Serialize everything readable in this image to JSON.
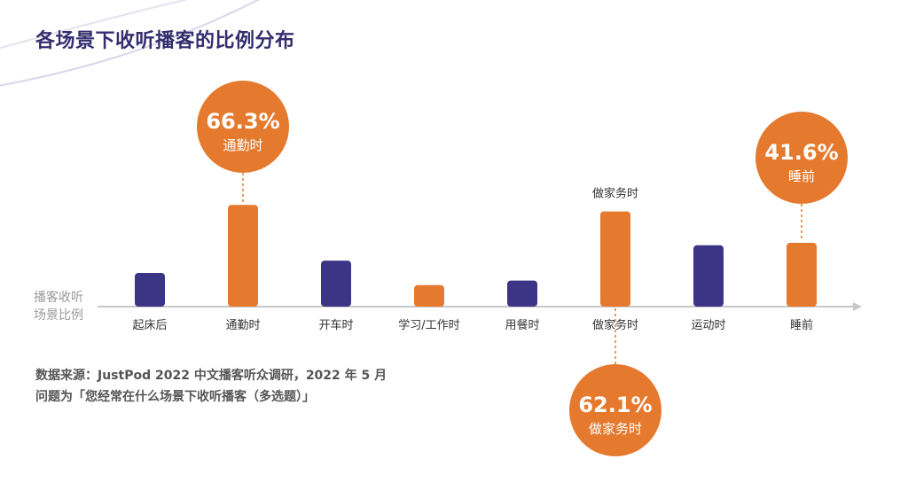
{
  "title": "各场景下收听播客的比例分布",
  "axis_caption": [
    "播客收听",
    "场景比例"
  ],
  "source": {
    "line1": "数据来源：JustPod 2022 中文播客听众调研，2022 年 5 月",
    "line2": "问题为「您经常在什么场景下收听播客（多选题）」"
  },
  "colors": {
    "navy": "#3c3586",
    "orange": "#e57a2f",
    "callout_text": "#ffffff",
    "axis": "#c8c8c8",
    "title": "#352d6e"
  },
  "chart_data": {
    "type": "bar",
    "categories": [
      "起床后",
      "通勤时",
      "开车时",
      "学习/工作时",
      "用餐时",
      "做家务时",
      "运动时",
      "睡前"
    ],
    "values": [
      22,
      66.3,
      30,
      14,
      17,
      62.1,
      40,
      41.6
    ],
    "value_labels": [
      "",
      "66.3%",
      "",
      "",
      "",
      "62.1%",
      "",
      "41.6%"
    ],
    "colors": [
      "navy",
      "orange",
      "navy",
      "orange",
      "navy",
      "orange",
      "navy",
      "orange"
    ],
    "top_labels": [
      "",
      "",
      "",
      "",
      "",
      "做家务时",
      "",
      ""
    ],
    "callouts": [
      {
        "index": 1,
        "value": "66.3%",
        "label": "通勤时",
        "side": "above"
      },
      {
        "index": 5,
        "value": "62.1%",
        "label": "做家务时",
        "side": "below"
      },
      {
        "index": 7,
        "value": "41.6%",
        "label": "睡前",
        "side": "above"
      }
    ],
    "ylim": [
      0,
      70
    ],
    "grid": false,
    "xlabel": "",
    "ylabel": "播客收听场景比例"
  }
}
